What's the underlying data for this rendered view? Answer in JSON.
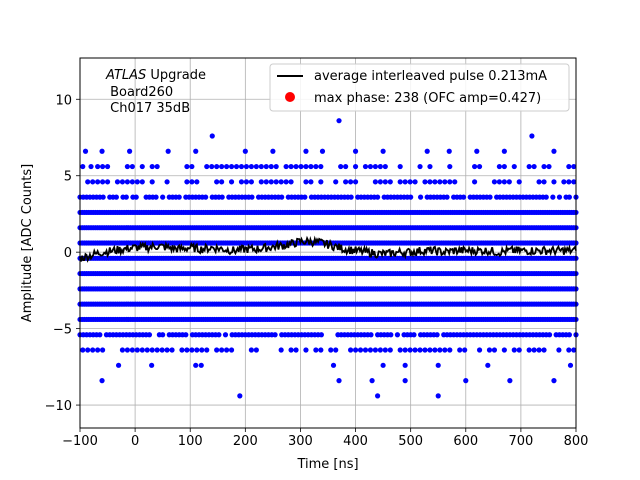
{
  "chart_data": {
    "type": "scatter",
    "xlabel": "Time [ns]",
    "ylabel": "Amplitude [ADC Counts]",
    "xlim": [
      -100,
      800
    ],
    "ylim": [
      -11.5,
      12.7
    ],
    "xticks": [
      -100,
      0,
      100,
      200,
      300,
      400,
      500,
      600,
      700,
      800
    ],
    "yticks": [
      -10,
      -5,
      0,
      5,
      10
    ],
    "grid": true,
    "legend_position": "top-right",
    "annotation": {
      "line1_italic": "ATLAS",
      "line1_rest": " Upgrade",
      "line2": " Board260",
      "line3": " Ch017 35dB"
    },
    "series": [
      {
        "name": "average interleaved pulse 0.213mA",
        "kind": "line",
        "color": "#000000",
        "x": [
          -100,
          -80,
          -60,
          -40,
          -20,
          0,
          20,
          40,
          60,
          80,
          100,
          120,
          140,
          160,
          180,
          200,
          220,
          240,
          260,
          280,
          300,
          320,
          340,
          360,
          380,
          400,
          420,
          440,
          460,
          480,
          500,
          520,
          540,
          560,
          580,
          600,
          620,
          640,
          660,
          680,
          700,
          720,
          740,
          760,
          780,
          800
        ],
        "y": [
          -0.4,
          -0.2,
          0.0,
          0.1,
          0.2,
          0.3,
          0.3,
          0.4,
          0.3,
          0.2,
          0.3,
          0.2,
          0.3,
          0.2,
          0.1,
          0.2,
          0.2,
          0.3,
          0.4,
          0.5,
          0.7,
          0.7,
          0.6,
          0.4,
          0.2,
          0.1,
          0.0,
          -0.1,
          -0.1,
          0.0,
          0.0,
          0.1,
          0.1,
          0.0,
          0.1,
          0.1,
          0.1,
          0.1,
          0.0,
          0.1,
          0.1,
          0.1,
          0.1,
          0.1,
          0.1,
          0.1
        ]
      },
      {
        "name": "max phase: 238 (OFC amp=0.427)",
        "kind": "marker",
        "color": "#ff0000",
        "x": [],
        "y": []
      },
      {
        "name": "",
        "kind": "scatter",
        "color": "#0000ff",
        "levels": [
          -10.4,
          -9.4,
          -8.4,
          -7.4,
          -6.4,
          -5.4,
          -4.4,
          -3.4,
          -2.4,
          -1.4,
          -0.4,
          0.6,
          1.6,
          2.6,
          3.6,
          4.6,
          5.6,
          6.6,
          7.6,
          8.6
        ],
        "dense_levels": [
          -4.4,
          -3.4,
          -2.4,
          -1.4,
          -0.4,
          0.6,
          1.6,
          2.6
        ],
        "medium_levels": [
          -5.4,
          3.6
        ],
        "sparse_levels": [
          -6.4,
          4.6,
          5.6
        ],
        "isolated_points": [
          {
            "x": -90,
            "y": 6.6
          },
          {
            "x": -80,
            "y": 5.6
          },
          {
            "x": -60,
            "y": 6.6
          },
          {
            "x": -10,
            "y": 6.6
          },
          {
            "x": 60,
            "y": 6.6
          },
          {
            "x": 110,
            "y": 6.6
          },
          {
            "x": 140,
            "y": 7.6
          },
          {
            "x": 200,
            "y": 6.6
          },
          {
            "x": 250,
            "y": 6.6
          },
          {
            "x": 310,
            "y": 6.6
          },
          {
            "x": 340,
            "y": 6.6
          },
          {
            "x": 370,
            "y": 8.6
          },
          {
            "x": 400,
            "y": 6.6
          },
          {
            "x": 450,
            "y": 6.6
          },
          {
            "x": 530,
            "y": 6.6
          },
          {
            "x": 570,
            "y": 6.6
          },
          {
            "x": 620,
            "y": 6.6
          },
          {
            "x": 670,
            "y": 6.6
          },
          {
            "x": 720,
            "y": 7.6
          },
          {
            "x": 760,
            "y": 6.6
          },
          {
            "x": -60,
            "y": -8.4
          },
          {
            "x": -30,
            "y": -7.4
          },
          {
            "x": 30,
            "y": -7.4
          },
          {
            "x": 110,
            "y": -7.4
          },
          {
            "x": 190,
            "y": -9.4
          },
          {
            "x": 360,
            "y": -7.4
          },
          {
            "x": 370,
            "y": -8.4
          },
          {
            "x": 430,
            "y": -8.4
          },
          {
            "x": 440,
            "y": -9.4
          },
          {
            "x": 490,
            "y": -7.4
          },
          {
            "x": 490,
            "y": -8.4
          },
          {
            "x": 550,
            "y": -9.4
          },
          {
            "x": 600,
            "y": -8.4
          },
          {
            "x": 680,
            "y": -8.4
          },
          {
            "x": 760,
            "y": -8.4
          },
          {
            "x": 790,
            "y": -7.4
          },
          {
            "x": 120,
            "y": -7.4
          },
          {
            "x": 450,
            "y": -7.4
          },
          {
            "x": 550,
            "y": -7.4
          },
          {
            "x": 640,
            "y": -7.4
          }
        ]
      }
    ]
  }
}
